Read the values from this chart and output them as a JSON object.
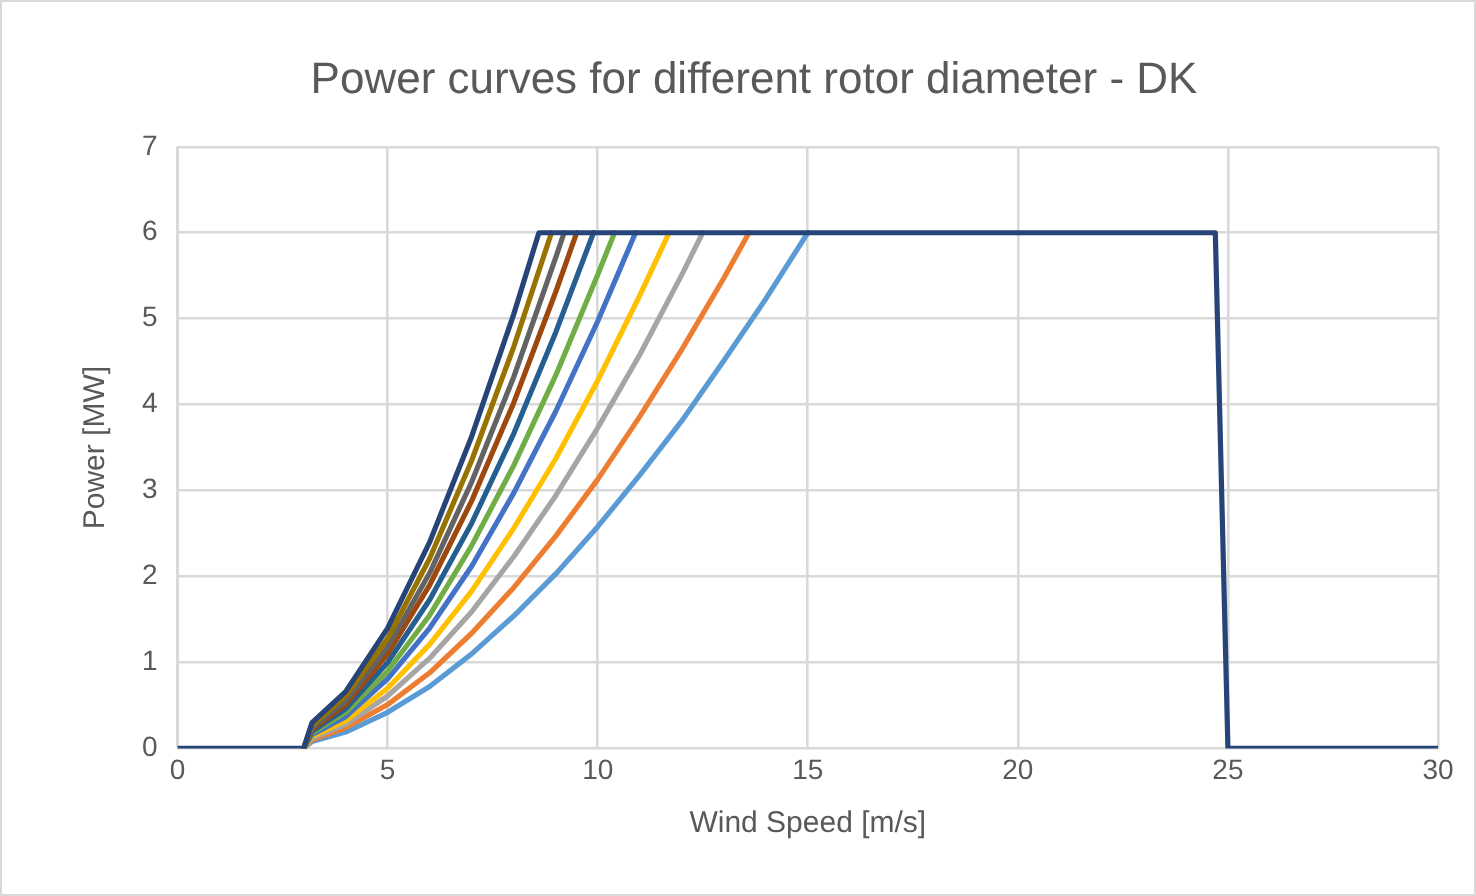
{
  "chart_data": {
    "type": "line",
    "title": "Power curves for different rotor diameter - DK",
    "xlabel": "Wind Speed [m/s]",
    "ylabel": "Power [MW]",
    "xlim": [
      0,
      30
    ],
    "xticks": [
      0,
      5,
      10,
      15,
      20,
      25,
      30
    ],
    "ylim": [
      0,
      7
    ],
    "yticks": [
      0,
      1,
      2,
      3,
      4,
      5,
      6,
      7
    ],
    "grid": true,
    "legend": false,
    "marker": "none",
    "line_style": "solid",
    "series": [
      {
        "color": "#5b9bd5",
        "x": [
          3,
          3.2,
          4,
          5,
          6,
          7,
          8,
          9,
          10,
          11,
          12,
          13,
          14,
          15
        ],
        "values": [
          0,
          0.08,
          0.19,
          0.42,
          0.72,
          1.1,
          1.54,
          2.03,
          2.58,
          3.18,
          3.81,
          4.51,
          5.23,
          6
        ]
      },
      {
        "color": "#ed7d31",
        "x": [
          3,
          3.2,
          4,
          5,
          6,
          7,
          8,
          9,
          10,
          11,
          12,
          13,
          13.6
        ],
        "values": [
          0,
          0.1,
          0.24,
          0.51,
          0.88,
          1.34,
          1.87,
          2.47,
          3.13,
          3.86,
          4.64,
          5.47,
          6
        ]
      },
      {
        "color": "#a5a5a5",
        "x": [
          3,
          3.2,
          4,
          5,
          6,
          7,
          8,
          9,
          10,
          11,
          12,
          12.5
        ],
        "values": [
          0,
          0.12,
          0.28,
          0.61,
          1.05,
          1.59,
          2.23,
          2.94,
          3.73,
          4.58,
          5.51,
          6
        ]
      },
      {
        "color": "#ffc000",
        "x": [
          3,
          3.2,
          4,
          5,
          6,
          7,
          8,
          9,
          10,
          11,
          11.7
        ],
        "values": [
          0,
          0.14,
          0.32,
          0.7,
          1.21,
          1.83,
          2.56,
          3.37,
          4.28,
          5.27,
          6
        ]
      },
      {
        "color": "#4472c4",
        "x": [
          3,
          3.2,
          4,
          5,
          6,
          7,
          8,
          9,
          10,
          10.9
        ],
        "values": [
          0,
          0.16,
          0.37,
          0.81,
          1.4,
          2.12,
          2.97,
          3.92,
          4.97,
          6
        ]
      },
      {
        "color": "#70ad47",
        "x": [
          3,
          3.2,
          4,
          5,
          6,
          7,
          8,
          9,
          10,
          10.4
        ],
        "values": [
          0,
          0.18,
          0.42,
          0.9,
          1.55,
          2.36,
          3.29,
          4.34,
          5.51,
          6
        ]
      },
      {
        "color": "#255e91",
        "x": [
          3,
          3.2,
          4,
          5,
          6,
          7,
          8,
          9,
          9.9
        ],
        "values": [
          0,
          0.2,
          0.46,
          1.0,
          1.73,
          2.62,
          3.66,
          4.84,
          6
        ]
      },
      {
        "color": "#9e480e",
        "x": [
          3,
          3.2,
          4,
          5,
          6,
          7,
          8,
          9,
          9.5
        ],
        "values": [
          0,
          0.22,
          0.51,
          1.1,
          1.9,
          2.88,
          4.02,
          5.31,
          6
        ]
      },
      {
        "color": "#636363",
        "x": [
          3,
          3.2,
          4,
          5,
          6,
          7,
          8,
          9,
          9.2
        ],
        "values": [
          0,
          0.24,
          0.55,
          1.18,
          2.04,
          3.1,
          4.32,
          5.71,
          6
        ]
      },
      {
        "color": "#997300",
        "x": [
          3,
          3.2,
          4,
          5,
          6,
          7,
          8,
          8.9
        ],
        "values": [
          0,
          0.27,
          0.61,
          1.28,
          2.21,
          3.35,
          4.67,
          6
        ]
      },
      {
        "color": "#264478",
        "x": [
          0,
          3,
          3.2,
          4,
          5,
          6,
          7,
          8,
          8.6,
          24.7,
          25,
          30
        ],
        "values": [
          0,
          0,
          0.3,
          0.66,
          1.4,
          2.4,
          3.63,
          5.05,
          6,
          6,
          0,
          0
        ]
      }
    ]
  }
}
